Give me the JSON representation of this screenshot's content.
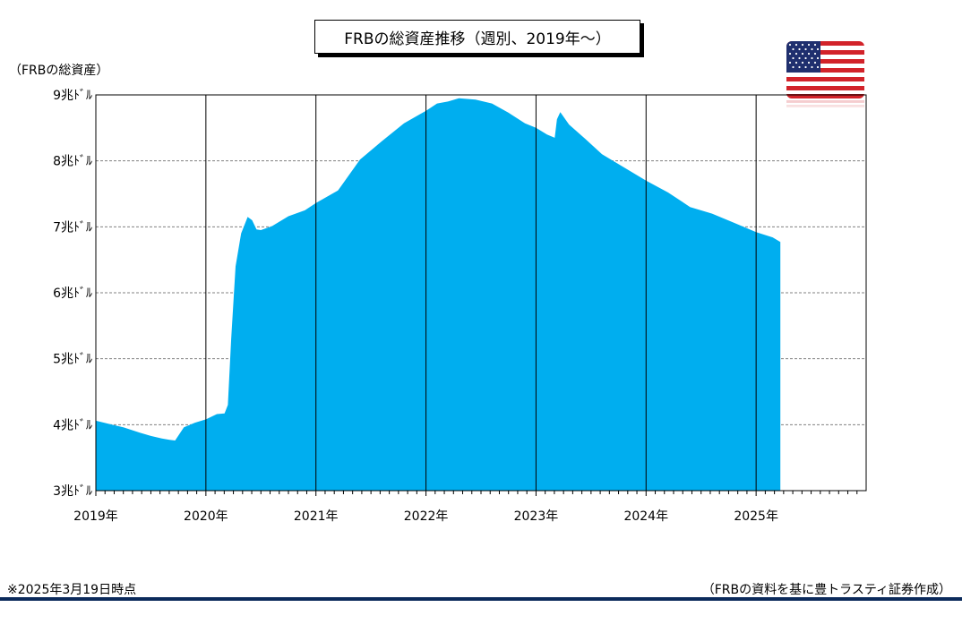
{
  "title": "FRBの総資産推移（週別、2019年～）",
  "footnote": "※2025年3月19日時点",
  "source": "（FRBの資料を基に豊トラスティ証券作成）",
  "colors": {
    "area": "#00aeef",
    "gridline": "#808080",
    "bottom_rule": "#0b2a5b",
    "flag_red": "#d2232a",
    "flag_blue": "#1f2f6e"
  },
  "chart_data": {
    "type": "area",
    "ylabel": "（FRBの総資産）",
    "ylim": [
      3,
      9
    ],
    "xlim": [
      2019.0,
      2026.0
    ],
    "y_ticks": [
      {
        "value": 9,
        "label": "9兆ﾄﾞﾙ"
      },
      {
        "value": 8,
        "label": "8兆ﾄﾞﾙ"
      },
      {
        "value": 7,
        "label": "7兆ﾄﾞﾙ"
      },
      {
        "value": 6,
        "label": "6兆ﾄﾞﾙ"
      },
      {
        "value": 5,
        "label": "5兆ﾄﾞﾙ"
      },
      {
        "value": 4,
        "label": "4兆ﾄﾞﾙ"
      },
      {
        "value": 3,
        "label": "3兆ﾄﾞﾙ"
      }
    ],
    "x_ticks": [
      {
        "value": 2019,
        "label": "2019年"
      },
      {
        "value": 2020,
        "label": "2020年"
      },
      {
        "value": 2021,
        "label": "2021年"
      },
      {
        "value": 2022,
        "label": "2022年"
      },
      {
        "value": 2023,
        "label": "2023年"
      },
      {
        "value": 2024,
        "label": "2024年"
      },
      {
        "value": 2025,
        "label": "2025年"
      }
    ],
    "grid": true,
    "series": [
      {
        "x": [
          2019.0,
          2019.1,
          2019.25,
          2019.4,
          2019.5,
          2019.6,
          2019.67,
          2019.72,
          2019.8,
          2019.9,
          2020.0,
          2020.1,
          2020.17,
          2020.2,
          2020.23,
          2020.27,
          2020.32,
          2020.38,
          2020.42,
          2020.46,
          2020.5,
          2020.6,
          2020.75,
          2020.9,
          2021.0,
          2021.2,
          2021.4,
          2021.6,
          2021.8,
          2022.0,
          2022.1,
          2022.2,
          2022.3,
          2022.45,
          2022.6,
          2022.75,
          2022.9,
          2023.0,
          2023.1,
          2023.17,
          2023.19,
          2023.22,
          2023.3,
          2023.45,
          2023.6,
          2023.8,
          2024.0,
          2024.2,
          2024.4,
          2024.6,
          2024.8,
          2025.0,
          2025.15,
          2025.22
        ],
        "y": [
          4.06,
          4.02,
          3.96,
          3.88,
          3.83,
          3.79,
          3.77,
          3.76,
          3.96,
          4.03,
          4.08,
          4.16,
          4.17,
          4.3,
          5.3,
          6.4,
          6.9,
          7.15,
          7.1,
          6.96,
          6.95,
          7.01,
          7.16,
          7.25,
          7.36,
          7.55,
          8.02,
          8.3,
          8.57,
          8.76,
          8.87,
          8.9,
          8.95,
          8.93,
          8.87,
          8.73,
          8.57,
          8.5,
          8.4,
          8.35,
          8.63,
          8.74,
          8.55,
          8.33,
          8.1,
          7.9,
          7.7,
          7.52,
          7.3,
          7.2,
          7.06,
          6.92,
          6.84,
          6.77
        ]
      }
    ]
  }
}
